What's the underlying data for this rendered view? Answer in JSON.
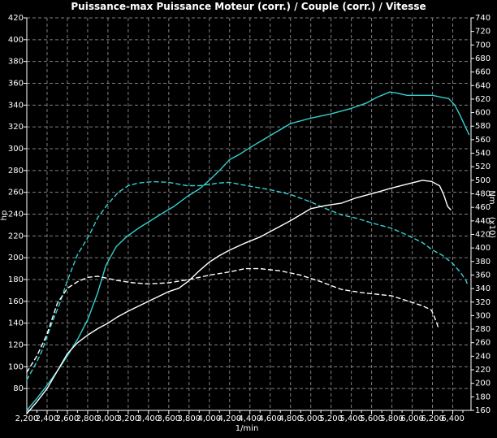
{
  "title": "Puissance-max Puissance Moteur (corr.) / Couple (corr.) / Vitesse",
  "colors": {
    "background": "#000000",
    "frame": "#ffffff",
    "grid": "#7f7f7f",
    "cyan_curve": "#35d0d0",
    "white_curve": "#ffffff"
  },
  "chart_data": {
    "type": "line",
    "title": "Puissance-max Puissance Moteur (corr.) / Couple (corr.) / Vitesse",
    "grid": "dashed both directions",
    "x_axis": {
      "unit": "1/min",
      "min": 2200,
      "max": 6580,
      "major_step": 200,
      "minor_step": 100,
      "tick_values": [
        2200,
        2400,
        2600,
        2800,
        3000,
        3200,
        3400,
        3600,
        3800,
        4000,
        4200,
        4400,
        4600,
        4800,
        5000,
        5200,
        5400,
        5600,
        5800,
        6000,
        6200,
        6400
      ],
      "tick_labels": [
        "2,200",
        "2,400",
        "2,600",
        "2,800",
        "3,000",
        "3,200",
        "3,400",
        "3,600",
        "3,800",
        "4,000",
        "4,200",
        "4,400",
        "4,600",
        "4,800",
        "5,000",
        "5,200",
        "5,400",
        "5,600",
        "5,800",
        "6,000",
        "6,200",
        "6,400"
      ]
    },
    "y_left": {
      "unit": "hp",
      "min": 60,
      "max": 420,
      "step": 20,
      "tick_labels": [
        420,
        400,
        380,
        360,
        340,
        320,
        300,
        280,
        260,
        240,
        220,
        200,
        180,
        160,
        140,
        120,
        100,
        80
      ]
    },
    "y_right": {
      "unit": "Nm",
      "sub_label": "(x10)",
      "min": 160,
      "max": 740,
      "step": 20,
      "tick_labels": [
        740,
        720,
        700,
        680,
        660,
        640,
        620,
        600,
        580,
        560,
        540,
        520,
        500,
        480,
        460,
        440,
        420,
        400,
        380,
        360,
        340,
        320,
        300,
        280,
        260,
        240,
        220,
        200,
        180,
        160
      ]
    },
    "series": [
      {
        "name": "puissance-moteur-corr",
        "color": "#35d0d0",
        "style": "solid",
        "axis": "left",
        "points": [
          [
            2200,
            60
          ],
          [
            2300,
            71
          ],
          [
            2400,
            83
          ],
          [
            2500,
            96
          ],
          [
            2600,
            110
          ],
          [
            2700,
            125
          ],
          [
            2800,
            143
          ],
          [
            2900,
            168
          ],
          [
            2980,
            193
          ],
          [
            3080,
            210
          ],
          [
            3180,
            219
          ],
          [
            3300,
            227
          ],
          [
            3420,
            234
          ],
          [
            3540,
            241
          ],
          [
            3650,
            247
          ],
          [
            3780,
            256
          ],
          [
            3900,
            263
          ],
          [
            4000,
            271
          ],
          [
            4100,
            280
          ],
          [
            4200,
            290
          ],
          [
            4300,
            295
          ],
          [
            4400,
            301
          ],
          [
            4600,
            312
          ],
          [
            4800,
            323
          ],
          [
            5000,
            328
          ],
          [
            5200,
            332
          ],
          [
            5400,
            337
          ],
          [
            5550,
            342
          ],
          [
            5650,
            347
          ],
          [
            5780,
            352
          ],
          [
            5850,
            351
          ],
          [
            5950,
            349
          ],
          [
            6100,
            349
          ],
          [
            6200,
            349
          ],
          [
            6300,
            347
          ],
          [
            6360,
            346
          ],
          [
            6420,
            340
          ],
          [
            6470,
            331
          ],
          [
            6520,
            321
          ],
          [
            6560,
            313
          ]
        ]
      },
      {
        "name": "couple-corr",
        "color": "#35d0d0",
        "style": "dashed",
        "axis": "right",
        "points": [
          [
            2200,
            205
          ],
          [
            2300,
            232
          ],
          [
            2350,
            248
          ],
          [
            2450,
            290
          ],
          [
            2520,
            316
          ],
          [
            2600,
            352
          ],
          [
            2700,
            390
          ],
          [
            2820,
            420
          ],
          [
            2900,
            445
          ],
          [
            3000,
            465
          ],
          [
            3100,
            482
          ],
          [
            3200,
            492
          ],
          [
            3300,
            496
          ],
          [
            3450,
            498
          ],
          [
            3600,
            497
          ],
          [
            3780,
            492
          ],
          [
            3900,
            492
          ],
          [
            4000,
            494
          ],
          [
            4100,
            496
          ],
          [
            4200,
            497
          ],
          [
            4300,
            494
          ],
          [
            4450,
            490
          ],
          [
            4600,
            486
          ],
          [
            4800,
            479
          ],
          [
            5000,
            468
          ],
          [
            5150,
            458
          ],
          [
            5300,
            449
          ],
          [
            5450,
            444
          ],
          [
            5600,
            437
          ],
          [
            5800,
            429
          ],
          [
            5950,
            419
          ],
          [
            6100,
            408
          ],
          [
            6200,
            397
          ],
          [
            6300,
            389
          ],
          [
            6400,
            377
          ],
          [
            6480,
            363
          ],
          [
            6530,
            352
          ],
          [
            6550,
            344
          ]
        ]
      },
      {
        "name": "puissance-non-corr",
        "color": "#ffffff",
        "style": "solid",
        "axis": "left",
        "points": [
          [
            2200,
            57
          ],
          [
            2300,
            68
          ],
          [
            2400,
            80
          ],
          [
            2500,
            96
          ],
          [
            2600,
            112
          ],
          [
            2700,
            122
          ],
          [
            2800,
            129
          ],
          [
            2900,
            135
          ],
          [
            3000,
            140
          ],
          [
            3100,
            146
          ],
          [
            3200,
            151
          ],
          [
            3400,
            160
          ],
          [
            3600,
            169
          ],
          [
            3700,
            172
          ],
          [
            3800,
            179
          ],
          [
            3900,
            188
          ],
          [
            4000,
            196
          ],
          [
            4100,
            202
          ],
          [
            4200,
            207
          ],
          [
            4340,
            213
          ],
          [
            4500,
            219
          ],
          [
            4600,
            224
          ],
          [
            4800,
            234
          ],
          [
            5000,
            245
          ],
          [
            5150,
            248
          ],
          [
            5300,
            250
          ],
          [
            5450,
            255
          ],
          [
            5650,
            260
          ],
          [
            5800,
            264
          ],
          [
            5970,
            268
          ],
          [
            6100,
            271
          ],
          [
            6190,
            270
          ],
          [
            6270,
            266
          ],
          [
            6310,
            258
          ],
          [
            6350,
            247
          ],
          [
            6380,
            244
          ]
        ]
      },
      {
        "name": "vitesse-curve",
        "color": "#ffffff",
        "style": "dashed",
        "axis": "left",
        "points": [
          [
            2200,
            95
          ],
          [
            2300,
            110
          ],
          [
            2400,
            130
          ],
          [
            2500,
            158
          ],
          [
            2600,
            172
          ],
          [
            2700,
            178
          ],
          [
            2800,
            182
          ],
          [
            2900,
            183
          ],
          [
            3000,
            181
          ],
          [
            3100,
            179
          ],
          [
            3250,
            177
          ],
          [
            3400,
            176
          ],
          [
            3600,
            177
          ],
          [
            3800,
            180
          ],
          [
            4000,
            184
          ],
          [
            4200,
            187
          ],
          [
            4350,
            190
          ],
          [
            4500,
            190
          ],
          [
            4700,
            188
          ],
          [
            4900,
            184
          ],
          [
            5100,
            178
          ],
          [
            5300,
            171
          ],
          [
            5500,
            168
          ],
          [
            5800,
            165
          ],
          [
            6000,
            159
          ],
          [
            6100,
            156
          ],
          [
            6190,
            152
          ],
          [
            6240,
            141
          ],
          [
            6260,
            135
          ]
        ]
      }
    ]
  }
}
